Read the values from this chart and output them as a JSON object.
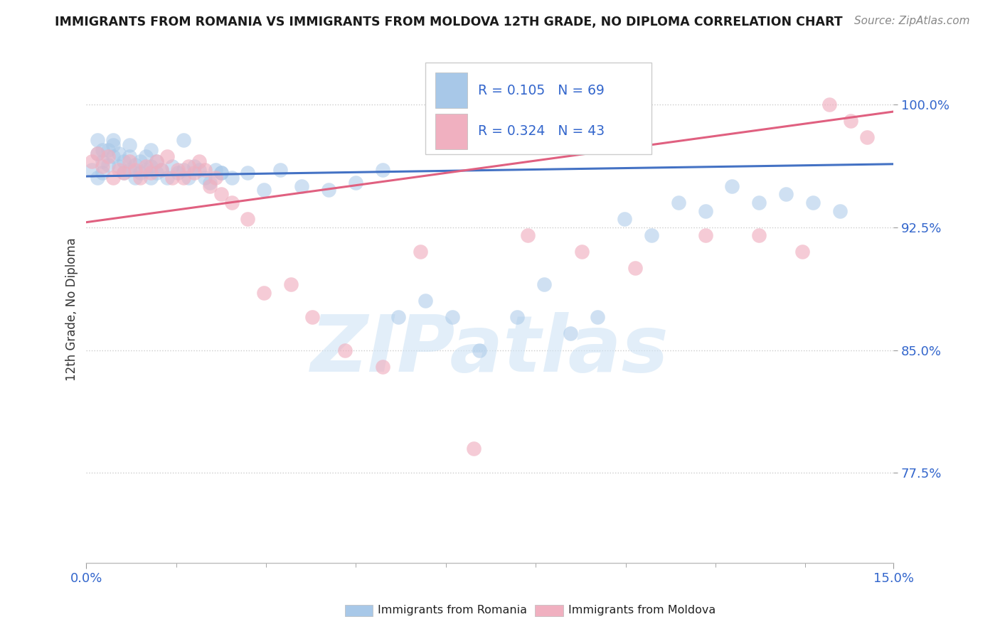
{
  "title": "IMMIGRANTS FROM ROMANIA VS IMMIGRANTS FROM MOLDOVA 12TH GRADE, NO DIPLOMA CORRELATION CHART",
  "source": "Source: ZipAtlas.com",
  "ylabel_label": "12th Grade, No Diploma",
  "legend_romania": "Immigrants from Romania",
  "legend_moldova": "Immigrants from Moldova",
  "R_romania": 0.105,
  "N_romania": 69,
  "R_moldova": 0.324,
  "N_moldova": 43,
  "color_romania": "#a8c8e8",
  "color_moldova": "#f0b0c0",
  "color_romania_line": "#4472c4",
  "color_moldova_line": "#e06080",
  "color_text_blue": "#3366cc",
  "color_text_dark": "#333333",
  "color_grid": "#cccccc",
  "background_color": "#ffffff",
  "xlim": [
    0.0,
    0.15
  ],
  "ylim": [
    0.72,
    1.03
  ],
  "yticks": [
    0.775,
    0.85,
    0.925,
    1.0
  ],
  "ytick_labels": [
    "77.5%",
    "85.0%",
    "92.5%",
    "100.0%"
  ],
  "watermark": "ZIPatlas",
  "romania_x": [
    0.001,
    0.002,
    0.002,
    0.003,
    0.003,
    0.004,
    0.004,
    0.005,
    0.005,
    0.006,
    0.006,
    0.007,
    0.007,
    0.008,
    0.008,
    0.009,
    0.009,
    0.01,
    0.01,
    0.011,
    0.011,
    0.012,
    0.012,
    0.013,
    0.013,
    0.014,
    0.015,
    0.016,
    0.017,
    0.018,
    0.019,
    0.02,
    0.021,
    0.022,
    0.023,
    0.024,
    0.025,
    0.027,
    0.03,
    0.033,
    0.036,
    0.04,
    0.045,
    0.05,
    0.055,
    0.058,
    0.063,
    0.068,
    0.073,
    0.08,
    0.085,
    0.09,
    0.095,
    0.1,
    0.105,
    0.11,
    0.115,
    0.12,
    0.125,
    0.13,
    0.135,
    0.14,
    0.002,
    0.003,
    0.005,
    0.008,
    0.012,
    0.018,
    0.025
  ],
  "romania_y": [
    0.96,
    0.955,
    0.97,
    0.965,
    0.958,
    0.963,
    0.972,
    0.968,
    0.975,
    0.962,
    0.97,
    0.958,
    0.965,
    0.96,
    0.968,
    0.955,
    0.963,
    0.958,
    0.965,
    0.96,
    0.968,
    0.955,
    0.962,
    0.958,
    0.965,
    0.96,
    0.955,
    0.962,
    0.958,
    0.96,
    0.955,
    0.962,
    0.96,
    0.955,
    0.952,
    0.96,
    0.958,
    0.955,
    0.958,
    0.948,
    0.96,
    0.95,
    0.948,
    0.952,
    0.96,
    0.87,
    0.88,
    0.87,
    0.85,
    0.87,
    0.89,
    0.86,
    0.87,
    0.93,
    0.92,
    0.94,
    0.935,
    0.95,
    0.94,
    0.945,
    0.94,
    0.935,
    0.978,
    0.972,
    0.978,
    0.975,
    0.972,
    0.978,
    0.958
  ],
  "moldova_x": [
    0.001,
    0.002,
    0.003,
    0.004,
    0.005,
    0.006,
    0.007,
    0.008,
    0.009,
    0.01,
    0.011,
    0.012,
    0.013,
    0.014,
    0.015,
    0.016,
    0.017,
    0.018,
    0.019,
    0.02,
    0.021,
    0.022,
    0.023,
    0.024,
    0.025,
    0.027,
    0.03,
    0.033,
    0.038,
    0.042,
    0.048,
    0.055,
    0.062,
    0.072,
    0.082,
    0.092,
    0.102,
    0.115,
    0.125,
    0.133,
    0.138,
    0.142,
    0.145
  ],
  "moldova_y": [
    0.965,
    0.97,
    0.962,
    0.968,
    0.955,
    0.96,
    0.958,
    0.965,
    0.96,
    0.955,
    0.962,
    0.958,
    0.965,
    0.96,
    0.968,
    0.955,
    0.96,
    0.955,
    0.962,
    0.958,
    0.965,
    0.96,
    0.95,
    0.955,
    0.945,
    0.94,
    0.93,
    0.885,
    0.89,
    0.87,
    0.85,
    0.84,
    0.91,
    0.79,
    0.92,
    0.91,
    0.9,
    0.92,
    0.92,
    0.91,
    1.0,
    0.99,
    0.98
  ]
}
